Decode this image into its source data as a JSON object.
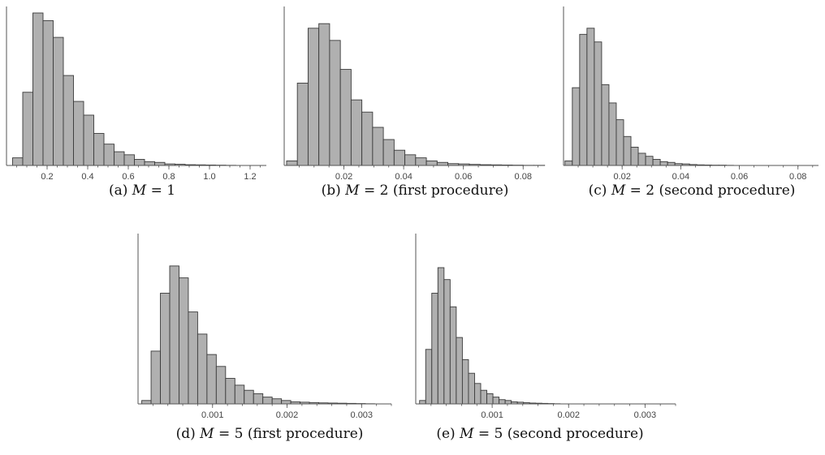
{
  "chart_data": [
    {
      "type": "bar",
      "caption": {
        "prefix": "(a) ",
        "var": "M",
        "rest": " = 1"
      },
      "xlim": [
        0,
        1.28
      ],
      "bin_start": 0.03,
      "bin_width": 0.05,
      "values": [
        0.05,
        0.48,
        1.0,
        0.95,
        0.84,
        0.59,
        0.42,
        0.33,
        0.21,
        0.14,
        0.09,
        0.07,
        0.04,
        0.025,
        0.02,
        0.01,
        0.008,
        0.005,
        0.004,
        0.003,
        0.002,
        0.001
      ],
      "xticks": [
        {
          "v": 0.2,
          "label": "0.2"
        },
        {
          "v": 0.4,
          "label": "0.4"
        },
        {
          "v": 0.6,
          "label": "0.6"
        },
        {
          "v": 0.8,
          "label": "0.8"
        },
        {
          "v": 1.0,
          "label": "1.0"
        },
        {
          "v": 1.2,
          "label": "1.2"
        }
      ],
      "minor_step": 0.05
    },
    {
      "type": "bar",
      "caption": {
        "prefix": "(b) ",
        "var": "M",
        "rest": " = 2 (first procedure)"
      },
      "xlim": [
        0,
        0.087
      ],
      "bin_start": 0.0008,
      "bin_width": 0.0036,
      "values": [
        0.03,
        0.54,
        0.9,
        0.93,
        0.82,
        0.63,
        0.43,
        0.35,
        0.25,
        0.17,
        0.1,
        0.07,
        0.05,
        0.03,
        0.02,
        0.012,
        0.01,
        0.007,
        0.005,
        0.004,
        0.003,
        0.002,
        0.001,
        0.001
      ],
      "xticks": [
        {
          "v": 0.02,
          "label": "0.02"
        },
        {
          "v": 0.04,
          "label": "0.04"
        },
        {
          "v": 0.06,
          "label": "0.06"
        },
        {
          "v": 0.08,
          "label": "0.08"
        }
      ],
      "minor_step": 0.005
    },
    {
      "type": "bar",
      "caption": {
        "prefix": "(c) ",
        "var": "M",
        "rest": " = 2 (second procedure)"
      },
      "xlim": [
        0,
        0.087
      ],
      "bin_start": 0.0005,
      "bin_width": 0.0025,
      "values": [
        0.03,
        0.51,
        0.86,
        0.9,
        0.81,
        0.53,
        0.41,
        0.3,
        0.19,
        0.12,
        0.08,
        0.06,
        0.04,
        0.025,
        0.02,
        0.012,
        0.01,
        0.006,
        0.004,
        0.003,
        0.002,
        0.002,
        0.001
      ],
      "xticks": [
        {
          "v": 0.02,
          "label": "0.02"
        },
        {
          "v": 0.04,
          "label": "0.04"
        },
        {
          "v": 0.06,
          "label": "0.06"
        },
        {
          "v": 0.08,
          "label": "0.08"
        }
      ],
      "minor_step": 0.005
    },
    {
      "type": "bar",
      "caption": {
        "prefix": "(d) ",
        "var": "M",
        "rest": " = 5 (first procedure)"
      },
      "xlim": [
        0,
        0.0034
      ],
      "bin_start": 5e-05,
      "bin_width": 0.000125,
      "values": [
        0.02,
        0.31,
        0.65,
        0.81,
        0.74,
        0.54,
        0.41,
        0.29,
        0.22,
        0.15,
        0.11,
        0.08,
        0.06,
        0.04,
        0.03,
        0.02,
        0.012,
        0.01,
        0.008,
        0.006,
        0.005,
        0.004,
        0.003,
        0.002,
        0.001
      ],
      "xticks": [
        {
          "v": 0.001,
          "label": "0.001"
        },
        {
          "v": 0.002,
          "label": "0.002"
        },
        {
          "v": 0.003,
          "label": "0.003"
        }
      ],
      "minor_step": 0.0002
    },
    {
      "type": "bar",
      "caption": {
        "prefix": "(e) ",
        "var": "M",
        "rest": " = 5 (second procedure)"
      },
      "xlim": [
        0,
        0.0034
      ],
      "bin_start": 5e-05,
      "bin_width": 8e-05,
      "values": [
        0.02,
        0.32,
        0.65,
        0.8,
        0.73,
        0.57,
        0.39,
        0.26,
        0.18,
        0.12,
        0.08,
        0.06,
        0.04,
        0.025,
        0.02,
        0.012,
        0.01,
        0.007,
        0.005,
        0.004,
        0.003,
        0.002,
        0.001
      ],
      "xticks": [
        {
          "v": 0.001,
          "label": "0.001"
        },
        {
          "v": 0.002,
          "label": "0.002"
        },
        {
          "v": 0.003,
          "label": "0.003"
        }
      ],
      "minor_step": 0.0002
    }
  ]
}
